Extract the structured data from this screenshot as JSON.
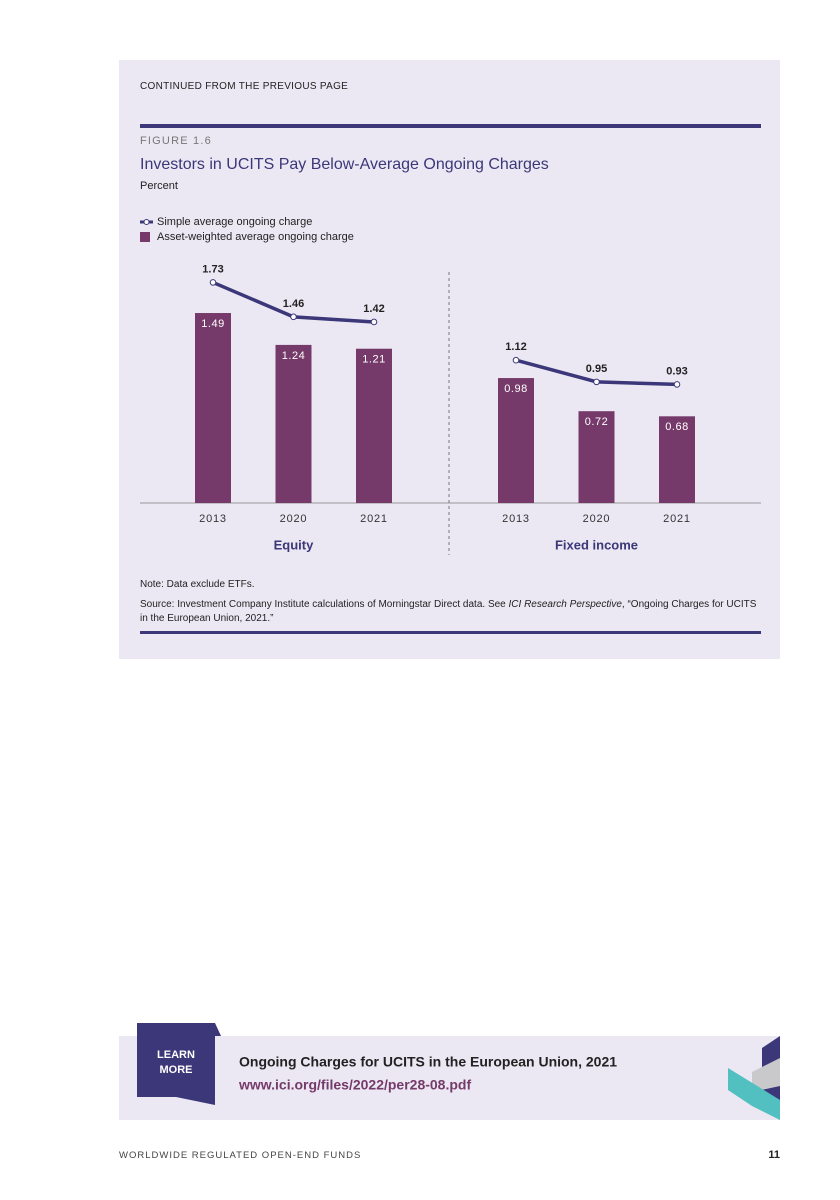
{
  "header": "CONTINUED FROM THE PREVIOUS PAGE",
  "figure_label": "FIGURE 1.6",
  "chart_data": {
    "type": "bar",
    "title": "Investors in UCITS Pay Below-Average Ongoing Charges",
    "subtitle": "Percent",
    "groups": [
      {
        "name": "Equity",
        "categories": [
          "2013",
          "2020",
          "2021"
        ]
      },
      {
        "name": "Fixed income",
        "categories": [
          "2013",
          "2020",
          "2021"
        ]
      }
    ],
    "series": [
      {
        "name": "Simple average ongoing charge",
        "type": "line",
        "color": "#3b3779",
        "values": [
          1.73,
          1.46,
          1.42,
          1.12,
          0.95,
          0.93
        ]
      },
      {
        "name": "Asset-weighted average ongoing charge",
        "type": "bar",
        "color": "#763a6a",
        "values": [
          1.49,
          1.24,
          1.21,
          0.98,
          0.72,
          0.68
        ]
      }
    ]
  },
  "note": "Note: Data exclude ETFs.",
  "source": [
    "Source: Investment Company Institute calculations of Morningstar Direct data. See ",
    "ICI Research Perspective",
    ", “Ongoing Charges for UCITS in the European Union, 2021.”"
  ],
  "learn_more": {
    "badge": [
      "LEARN",
      "MORE"
    ],
    "title": "Ongoing Charges for UCITS in the European Union, 2021",
    "url": "www.ici.org/files/2022/per28-08.pdf"
  },
  "footer": {
    "text": "WORLDWIDE REGULATED OPEN-END FUNDS",
    "page": "11"
  }
}
